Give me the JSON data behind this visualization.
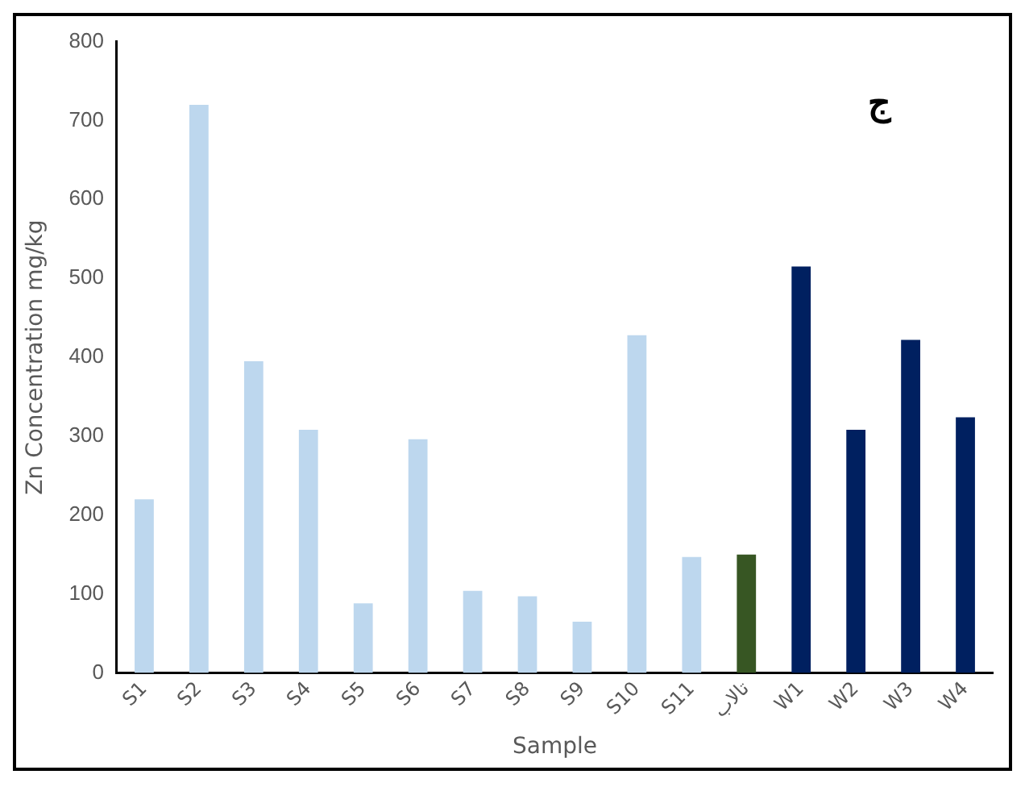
{
  "chart_data": {
    "type": "bar",
    "xlabel": "Sample",
    "ylabel": "Zn Concentration mg/kg",
    "annotations": [
      "ج"
    ],
    "categories": [
      "S1",
      "S2",
      "S3",
      "S4",
      "S5",
      "S6",
      "S7",
      "S8",
      "S9",
      "S10",
      "S11",
      "تالاب",
      "W1",
      "W2",
      "W3",
      "W4"
    ],
    "values": [
      220,
      720,
      395,
      308,
      88,
      296,
      104,
      97,
      65,
      428,
      147,
      150,
      515,
      308,
      422,
      324
    ],
    "colors": [
      "#bdd7ee",
      "#bdd7ee",
      "#bdd7ee",
      "#bdd7ee",
      "#bdd7ee",
      "#bdd7ee",
      "#bdd7ee",
      "#bdd7ee",
      "#bdd7ee",
      "#bdd7ee",
      "#bdd7ee",
      "#375623",
      "#002060",
      "#002060",
      "#002060",
      "#002060"
    ],
    "ylim": [
      0,
      800
    ],
    "yticks": [
      0,
      100,
      200,
      300,
      400,
      500,
      600,
      700,
      800
    ],
    "grid": false,
    "legend": false
  }
}
